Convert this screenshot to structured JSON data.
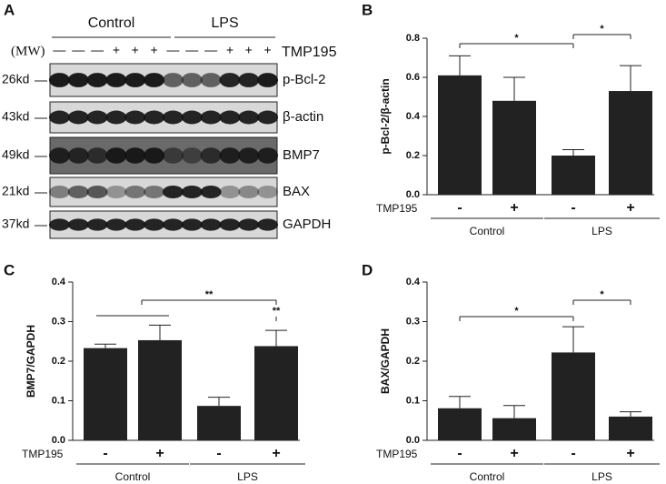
{
  "blot": {
    "panel": "A",
    "groups": [
      "Control",
      "LPS"
    ],
    "mw_label": "(MW)",
    "treatment_label": "TMP195",
    "treatment": [
      "—",
      "—",
      "—",
      "+",
      "+",
      "+",
      "—",
      "—",
      "—",
      "+",
      "+",
      "+"
    ],
    "rows": [
      {
        "mw": "26kd",
        "protein": "p-Bcl-2"
      },
      {
        "mw": "43kd",
        "protein": "β-actin"
      },
      {
        "mw": "49kd",
        "protein": "BMP7"
      },
      {
        "mw": "21kd",
        "protein": "BAX"
      },
      {
        "mw": "37kd",
        "protein": "GAPDH"
      }
    ]
  },
  "chart_data": [
    {
      "type": "bar",
      "panel": "B",
      "ylabel": "p-Bcl-2/β-actin",
      "row_label": "TMP195",
      "categories": [
        "-",
        "+",
        "-",
        "+"
      ],
      "groups": [
        "Control",
        "LPS"
      ],
      "values": [
        0.61,
        0.48,
        0.2,
        0.53
      ],
      "errors": [
        0.1,
        0.12,
        0.03,
        0.13
      ],
      "color": "#222222",
      "ylim": [
        0,
        0.8
      ],
      "yticks": [
        {
          "value": 0,
          "label": "0.0"
        },
        0.2,
        0.4,
        0.6,
        0.8
      ],
      "annotations": [
        "*",
        "*"
      ]
    },
    {
      "type": "bar",
      "panel": "C",
      "ylabel": "BMP7/GAPDH",
      "row_label": "TMP195",
      "categories": [
        "-",
        "+",
        "-",
        "+"
      ],
      "groups": [
        "Control",
        "LPS"
      ],
      "values": [
        0.233,
        0.253,
        0.087,
        0.238
      ],
      "errors": [
        0.01,
        0.038,
        0.022,
        0.04
      ],
      "color": "#222222",
      "ylim": [
        0,
        0.4
      ],
      "yticks": [
        {
          "value": 0,
          "label": "0.0"
        },
        0.1,
        0.2,
        0.3,
        0.4
      ],
      "annotations": [
        "**",
        "**"
      ]
    },
    {
      "type": "bar",
      "panel": "D",
      "ylabel": "BAX/GAPDH",
      "row_label": "TMP195",
      "categories": [
        "-",
        "+",
        "-",
        "+"
      ],
      "groups": [
        "Control",
        "LPS"
      ],
      "values": [
        0.081,
        0.056,
        0.222,
        0.06
      ],
      "errors": [
        0.03,
        0.032,
        0.065,
        0.012
      ],
      "color": "#222222",
      "ylim": [
        0,
        0.4
      ],
      "yticks": [
        {
          "value": 0,
          "label": "0.0"
        },
        0.1,
        0.2,
        0.3,
        0.4
      ],
      "annotations": [
        "*",
        "*"
      ]
    }
  ]
}
